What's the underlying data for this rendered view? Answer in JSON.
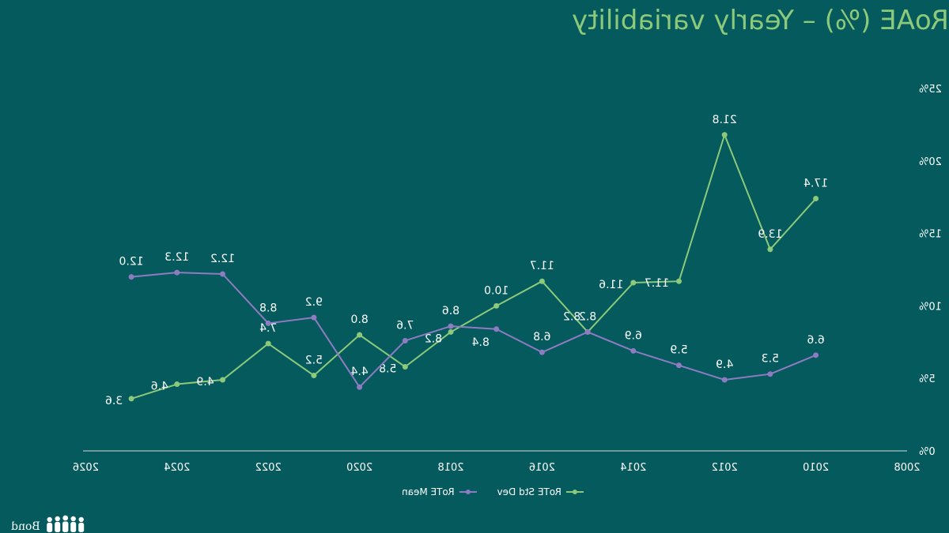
{
  "title": "RoAE (%) – Yearly variability",
  "colors": {
    "background": "#045a5c",
    "std_dev": "#8cc97a",
    "mean": "#8f7bc2",
    "text": "#ffffff",
    "title": "#8cc97a"
  },
  "logo": {
    "text": "Bond",
    "icon": "people-group-icon"
  },
  "chart_data": {
    "type": "line",
    "title": "RoAE (%) – Yearly variability",
    "mirrored_horizontally": true,
    "x": [
      2010,
      2011,
      2012,
      2013,
      2014,
      2015,
      2016,
      2017,
      2018,
      2019,
      2020,
      2021,
      2022,
      2023,
      2024,
      2025
    ],
    "xlim": [
      2008,
      2026
    ],
    "xticks": [
      2008,
      2010,
      2012,
      2014,
      2016,
      2018,
      2020,
      2022,
      2024,
      2026
    ],
    "ylim": [
      0,
      25
    ],
    "yticks": [
      0,
      5,
      10,
      15,
      20,
      25
    ],
    "y_tick_suffix": "%",
    "series": [
      {
        "name": "RoTE Std Dev",
        "color": "#8cc97a",
        "values": [
          17.4,
          13.9,
          21.8,
          11.7,
          11.6,
          8.2,
          11.7,
          10.0,
          8.2,
          5.8,
          8.0,
          5.2,
          7.4,
          4.9,
          4.6,
          3.6
        ]
      },
      {
        "name": "RoTE Mean",
        "color": "#8f7bc2",
        "values": [
          6.6,
          5.3,
          4.9,
          5.9,
          6.9,
          8.2,
          6.8,
          8.4,
          8.6,
          7.6,
          4.4,
          9.2,
          8.8,
          12.2,
          12.3,
          12.0
        ]
      }
    ],
    "legend_position": "bottom"
  }
}
